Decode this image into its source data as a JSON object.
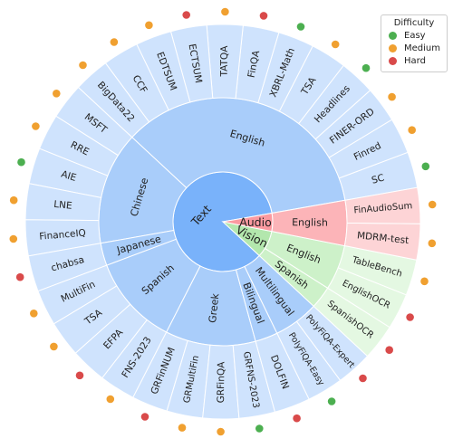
{
  "chart_data": {
    "type": "sunburst",
    "legend": {
      "title": "Difficulty",
      "placement": "top-right",
      "items": [
        {
          "label": "Easy",
          "color": "#4caf50"
        },
        {
          "label": "Medium",
          "color": "#f0a030"
        },
        {
          "label": "Hard",
          "color": "#d94a4a"
        }
      ]
    },
    "colors": {
      "text_root": "#79b2fa",
      "text_ring": "#a9cdfa",
      "text_leaf": "#cfe3fd",
      "audio_root": "#fb9aa0",
      "audio_ring": "#fcb4b8",
      "audio_leaf": "#fdd4d6",
      "vision_root": "#b3e7ad",
      "vision_ring": "#cdf1c9",
      "vision_leaf": "#e4f8e2",
      "separator": "#ffffff"
    },
    "modalities": [
      {
        "name": "Text",
        "scheme": "text",
        "languages": [
          {
            "name": "English",
            "datasets": [
              {
                "name": "SC",
                "difficulty": "Easy"
              },
              {
                "name": "Finred",
                "difficulty": "Medium"
              },
              {
                "name": "FINER-ORD",
                "difficulty": "Medium"
              },
              {
                "name": "Headlines",
                "difficulty": "Easy"
              },
              {
                "name": "TSA",
                "difficulty": "Medium"
              },
              {
                "name": "XBRL-Math",
                "difficulty": "Easy"
              },
              {
                "name": "FinQA",
                "difficulty": "Hard"
              },
              {
                "name": "TATQA",
                "difficulty": "Medium"
              },
              {
                "name": "ECTSUM",
                "difficulty": "Hard"
              },
              {
                "name": "EDTSUM",
                "difficulty": "Medium"
              },
              {
                "name": "CCF",
                "difficulty": "Medium"
              },
              {
                "name": "BigData22",
                "difficulty": "Medium"
              }
            ]
          },
          {
            "name": "Chinese",
            "datasets": [
              {
                "name": "MSFT",
                "difficulty": "Medium"
              },
              {
                "name": "RRE",
                "difficulty": "Medium"
              },
              {
                "name": "AIE",
                "difficulty": "Easy"
              },
              {
                "name": "LNE",
                "difficulty": "Medium"
              },
              {
                "name": "FinanceIQ",
                "difficulty": "Medium"
              }
            ]
          },
          {
            "name": "Japanese",
            "datasets": [
              {
                "name": "chabsa",
                "difficulty": "Hard"
              }
            ]
          },
          {
            "name": "Spanish",
            "datasets": [
              {
                "name": "MultiFin",
                "difficulty": "Medium"
              },
              {
                "name": "TSA",
                "difficulty": "Medium"
              },
              {
                "name": "EFPA",
                "difficulty": "Hard"
              },
              {
                "name": "FNS-2023",
                "difficulty": "Medium"
              }
            ]
          },
          {
            "name": "Greek",
            "datasets": [
              {
                "name": "GRFinNUM",
                "difficulty": "Hard"
              },
              {
                "name": "GRMultiFin",
                "difficulty": "Medium"
              },
              {
                "name": "GRFinQA",
                "difficulty": "Medium"
              },
              {
                "name": "GRFNS-2023",
                "difficulty": "Easy"
              }
            ]
          },
          {
            "name": "Bilingual",
            "datasets": [
              {
                "name": "DOLFIN",
                "difficulty": "Hard"
              }
            ]
          },
          {
            "name": "Multilingual",
            "datasets": [
              {
                "name": "PolyFiQA-Easy",
                "difficulty": "Easy"
              },
              {
                "name": "PolyFiQA-Expert",
                "difficulty": "Hard"
              }
            ]
          }
        ]
      },
      {
        "name": "Vision",
        "scheme": "vision",
        "languages": [
          {
            "name": "Spanish",
            "datasets": [
              {
                "name": "SpanishOCR",
                "difficulty": "Hard"
              }
            ]
          },
          {
            "name": "English",
            "datasets": [
              {
                "name": "EnglishOCR",
                "difficulty": "Hard"
              },
              {
                "name": "TableBench",
                "difficulty": "Medium"
              }
            ]
          }
        ]
      },
      {
        "name": "Audio",
        "scheme": "audio",
        "languages": [
          {
            "name": "English",
            "datasets": [
              {
                "name": "MDRM-test",
                "difficulty": "Medium"
              },
              {
                "name": "FinAudioSum",
                "difficulty": "Medium"
              }
            ]
          }
        ]
      }
    ]
  }
}
